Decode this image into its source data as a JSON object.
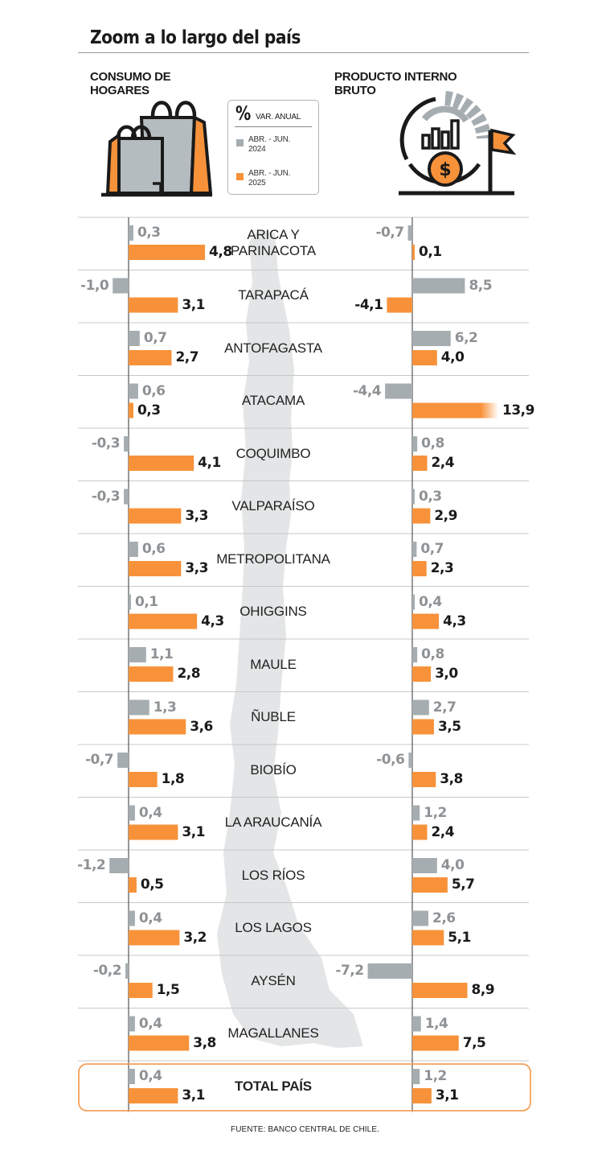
{
  "title": "Zoom a lo largo del país",
  "left_header": [
    "CONSUMO DE",
    "HOGARES"
  ],
  "right_header": [
    "PRODUCTO INTERNO",
    "BRUTO"
  ],
  "legend": {
    "symbol": "%",
    "unit": "VAR. ANUAL",
    "items": [
      {
        "lines": [
          "ABR. - JUN.",
          "2024"
        ],
        "color": "#a6adb1"
      },
      {
        "lines": [
          "ABR. - JUN.",
          "2025"
        ],
        "color": "#f7923a"
      }
    ]
  },
  "source": "FUENTE: BANCO CENTRAL DE CHILE.",
  "icons": {
    "left": "shopping-bags-icon",
    "right": "gdp-growth-icon",
    "background": "chile-map-silhouette"
  },
  "colors": {
    "gray": "#a6adb1",
    "orange": "#f7923a",
    "total_border": "#f4a15a",
    "map": "#e3e5e6"
  },
  "chart_data": {
    "type": "bar",
    "orientation": "horizontal",
    "title": "Zoom a lo largo del país",
    "series_names": [
      "ABR. - JUN. 2024",
      "ABR. - JUN. 2025"
    ],
    "unit": "% VAR. ANUAL",
    "panels": [
      {
        "name": "CONSUMO DE HOGARES",
        "xlim": [
          -1.3,
          9
        ]
      },
      {
        "name": "PRODUCTO INTERNO BRUTO",
        "xlim": [
          -7.4,
          13.9
        ]
      }
    ],
    "rows": [
      {
        "region": [
          "ARICA Y",
          "PARINACOTA"
        ],
        "consumo": [
          0.3,
          4.8
        ],
        "consumo_labels": [
          "0,3",
          "4,8"
        ],
        "pib": [
          -0.7,
          0.1
        ],
        "pib_labels": [
          "-0,7",
          "0,1"
        ]
      },
      {
        "region": [
          "TARAPACÁ"
        ],
        "consumo": [
          -1.0,
          3.1
        ],
        "consumo_labels": [
          "-1,0",
          "3,1"
        ],
        "pib": [
          8.5,
          -4.1
        ],
        "pib_labels": [
          "8,5",
          "-4,1"
        ]
      },
      {
        "region": [
          "ANTOFAGASTA"
        ],
        "consumo": [
          0.7,
          2.7
        ],
        "consumo_labels": [
          "0,7",
          "2,7"
        ],
        "pib": [
          6.2,
          4.0
        ],
        "pib_labels": [
          "6,2",
          "4,0"
        ]
      },
      {
        "region": [
          "ATACAMA"
        ],
        "consumo": [
          0.6,
          0.3
        ],
        "consumo_labels": [
          "0,6",
          "0,3"
        ],
        "pib": [
          -4.4,
          13.9
        ],
        "pib_labels": [
          "-4,4",
          "13,9"
        ]
      },
      {
        "region": [
          "COQUIMBO"
        ],
        "consumo": [
          -0.3,
          4.1
        ],
        "consumo_labels": [
          "-0,3",
          "4,1"
        ],
        "pib": [
          0.8,
          2.4
        ],
        "pib_labels": [
          "0,8",
          "2,4"
        ]
      },
      {
        "region": [
          "VALPARAÍSO"
        ],
        "consumo": [
          -0.3,
          3.3
        ],
        "consumo_labels": [
          "-0,3",
          "3,3"
        ],
        "pib": [
          0.3,
          2.9
        ],
        "pib_labels": [
          "0,3",
          "2,9"
        ]
      },
      {
        "region": [
          "METROPOLITANA"
        ],
        "consumo": [
          0.6,
          3.3
        ],
        "consumo_labels": [
          "0,6",
          "3,3"
        ],
        "pib": [
          0.7,
          2.3
        ],
        "pib_labels": [
          "0,7",
          "2,3"
        ]
      },
      {
        "region": [
          "OHIGGINS"
        ],
        "consumo": [
          0.1,
          4.3
        ],
        "consumo_labels": [
          "0,1",
          "4,3"
        ],
        "pib": [
          0.4,
          4.3
        ],
        "pib_labels": [
          "0,4",
          "4,3"
        ]
      },
      {
        "region": [
          "MAULE"
        ],
        "consumo": [
          1.1,
          2.8
        ],
        "consumo_labels": [
          "1,1",
          "2,8"
        ],
        "pib": [
          0.8,
          3.0
        ],
        "pib_labels": [
          "0,8",
          "3,0"
        ]
      },
      {
        "region": [
          "ÑUBLE"
        ],
        "consumo": [
          1.3,
          3.6
        ],
        "consumo_labels": [
          "1,3",
          "3,6"
        ],
        "pib": [
          2.7,
          3.5
        ],
        "pib_labels": [
          "2,7",
          "3,5"
        ]
      },
      {
        "region": [
          "BIOBÍO"
        ],
        "consumo": [
          -0.7,
          1.8
        ],
        "consumo_labels": [
          "-0,7",
          "1,8"
        ],
        "pib": [
          -0.6,
          3.8
        ],
        "pib_labels": [
          "-0,6",
          "3,8"
        ]
      },
      {
        "region": [
          "LA ARAUCANÍA"
        ],
        "consumo": [
          0.4,
          3.1
        ],
        "consumo_labels": [
          "0,4",
          "3,1"
        ],
        "pib": [
          1.2,
          2.4
        ],
        "pib_labels": [
          "1,2",
          "2,4"
        ]
      },
      {
        "region": [
          "LOS RÍOS"
        ],
        "consumo": [
          -1.2,
          0.5
        ],
        "consumo_labels": [
          "-1,2",
          "0,5"
        ],
        "pib": [
          4.0,
          5.7
        ],
        "pib_labels": [
          "4,0",
          "5,7"
        ]
      },
      {
        "region": [
          "LOS LAGOS"
        ],
        "consumo": [
          0.4,
          3.2
        ],
        "consumo_labels": [
          "0,4",
          "3,2"
        ],
        "pib": [
          2.6,
          5.1
        ],
        "pib_labels": [
          "2,6",
          "5,1"
        ]
      },
      {
        "region": [
          "AYSÉN"
        ],
        "consumo": [
          -0.2,
          1.5
        ],
        "consumo_labels": [
          "-0,2",
          "1,5"
        ],
        "pib": [
          -7.2,
          8.9
        ],
        "pib_labels": [
          "-7,2",
          "8,9"
        ]
      },
      {
        "region": [
          "MAGALLANES"
        ],
        "consumo": [
          0.4,
          3.8
        ],
        "consumo_labels": [
          "0,4",
          "3,8"
        ],
        "pib": [
          1.4,
          7.5
        ],
        "pib_labels": [
          "1,4",
          "7,5"
        ]
      },
      {
        "region": [
          "TOTAL PAÍS"
        ],
        "consumo": [
          0.4,
          3.1
        ],
        "consumo_labels": [
          "0,4",
          "3,1"
        ],
        "pib": [
          1.2,
          3.1
        ],
        "pib_labels": [
          "1,2",
          "3,1"
        ],
        "total": true
      }
    ]
  }
}
